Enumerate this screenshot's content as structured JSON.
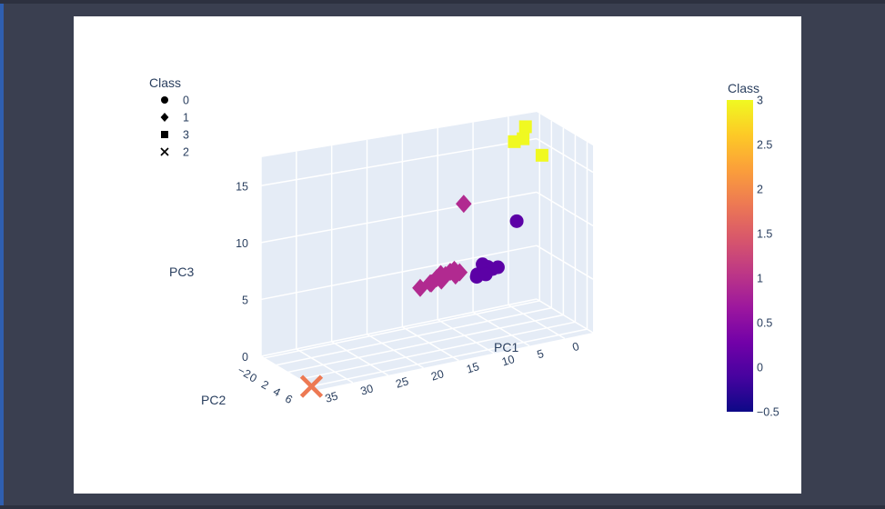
{
  "chart_data": {
    "type": "scatter",
    "dimensions": "3d",
    "legend": {
      "title": "Class",
      "placement": "top-left",
      "items": [
        {
          "label": "0",
          "symbol": "circle"
        },
        {
          "label": "1",
          "symbol": "diamond"
        },
        {
          "label": "3",
          "symbol": "square"
        },
        {
          "label": "2",
          "symbol": "x"
        }
      ]
    },
    "colorbar": {
      "title": "Class",
      "placement": "right",
      "range": [
        -0.5,
        3
      ],
      "ticks": [
        "3",
        "2.5",
        "2",
        "1.5",
        "1",
        "0.5",
        "0",
        "−0.5"
      ],
      "colorscale": [
        "#0d0887",
        "#46039f",
        "#7201a8",
        "#9c179e",
        "#bd3786",
        "#d8576b",
        "#ed7953",
        "#fb9f3a",
        "#fdca26",
        "#f0f921"
      ]
    },
    "axes": {
      "x": {
        "title": "PC1",
        "ticks": [
          "0",
          "5",
          "10",
          "15",
          "20",
          "25",
          "30",
          "35"
        ]
      },
      "y": {
        "title": "PC2",
        "ticks": [
          "−2",
          "0",
          "2",
          "4",
          "6"
        ]
      },
      "z": {
        "title": "PC3",
        "ticks": [
          "0",
          "5",
          "10",
          "15"
        ]
      }
    },
    "series": [
      {
        "symbol": "square",
        "class": 3,
        "color": "#f0f921",
        "points": [
          {
            "x": -2.0,
            "y": -2.0,
            "z": 16.5
          },
          {
            "x": -1.5,
            "y": -1.8,
            "z": 15.5
          },
          {
            "x": 0.0,
            "y": -1.5,
            "z": 15.5
          },
          {
            "x": -3.5,
            "y": -1.0,
            "z": 14.0
          }
        ]
      },
      {
        "symbol": "circle",
        "class": 0,
        "color": "#5c01a6",
        "points": [
          {
            "x": 0.5,
            "y": -0.5,
            "z": 8.5
          },
          {
            "x": 4.0,
            "y": 0.5,
            "z": 5.0
          },
          {
            "x": 5.0,
            "y": 0.0,
            "z": 5.0
          },
          {
            "x": 6.0,
            "y": 0.3,
            "z": 4.8
          },
          {
            "x": 5.5,
            "y": -0.3,
            "z": 5.2
          },
          {
            "x": 6.5,
            "y": 0.0,
            "z": 4.5
          },
          {
            "x": 7.0,
            "y": 0.5,
            "z": 4.5
          },
          {
            "x": 4.5,
            "y": 0.2,
            "z": 4.8
          },
          {
            "x": 5.8,
            "y": 0.6,
            "z": 4.6
          }
        ]
      },
      {
        "symbol": "diamond",
        "class": 1,
        "color": "#b12a90",
        "points": [
          {
            "x": 8.0,
            "y": -0.5,
            "z": 11.0
          },
          {
            "x": 9.0,
            "y": 0.0,
            "z": 5.0
          },
          {
            "x": 10.0,
            "y": 0.5,
            "z": 5.0
          },
          {
            "x": 11.0,
            "y": 0.0,
            "z": 5.0
          },
          {
            "x": 12.0,
            "y": 0.5,
            "z": 4.8
          },
          {
            "x": 13.0,
            "y": 0.0,
            "z": 4.5
          },
          {
            "x": 15.0,
            "y": 0.5,
            "z": 4.5
          },
          {
            "x": 10.5,
            "y": 0.2,
            "z": 5.3
          },
          {
            "x": 11.5,
            "y": -0.2,
            "z": 5.1
          },
          {
            "x": 12.5,
            "y": 0.3,
            "z": 5.0
          },
          {
            "x": 9.5,
            "y": -0.3,
            "z": 5.2
          },
          {
            "x": 13.5,
            "y": 0.4,
            "z": 4.7
          }
        ]
      },
      {
        "symbol": "x",
        "class": 2,
        "color": "#ed7953",
        "points": [
          {
            "x": 35.0,
            "y": 6.0,
            "z": 0.0
          }
        ]
      }
    ]
  }
}
